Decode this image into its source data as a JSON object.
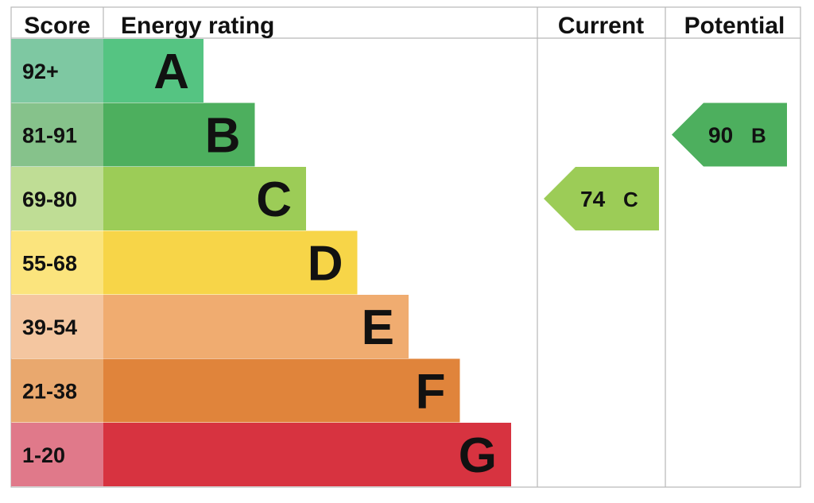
{
  "chart_data": {
    "type": "table",
    "headers": {
      "score": "Score",
      "energy_rating": "Energy rating",
      "current": "Current",
      "potential": "Potential"
    },
    "bands": [
      {
        "letter": "A",
        "range": "92+",
        "max_score": 100,
        "color": "#55c482",
        "score_color": "#7ec8a2"
      },
      {
        "letter": "B",
        "range": "81-91",
        "max_score": 91,
        "color": "#4daf5e",
        "score_color": "#86c28b"
      },
      {
        "letter": "C",
        "range": "69-80",
        "max_score": 80,
        "color": "#9ccc57",
        "score_color": "#bfdd95"
      },
      {
        "letter": "D",
        "range": "55-68",
        "max_score": 68,
        "color": "#f7d548",
        "score_color": "#fbe47d"
      },
      {
        "letter": "E",
        "range": "39-54",
        "max_score": 54,
        "color": "#f0ac70",
        "score_color": "#f4c6a0"
      },
      {
        "letter": "F",
        "range": "21-38",
        "max_score": 38,
        "color": "#e0843b",
        "score_color": "#e9a86e"
      },
      {
        "letter": "G",
        "range": "1-20",
        "max_score": 20,
        "color": "#d73340",
        "score_color": "#e0798a"
      }
    ],
    "current": {
      "value": 74,
      "letter": "C",
      "label": "74",
      "color": "#9ccc57"
    },
    "potential": {
      "value": 90,
      "letter": "B",
      "label": "90",
      "color": "#4daf5e"
    }
  }
}
